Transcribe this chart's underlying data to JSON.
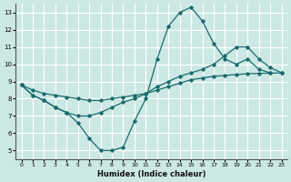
{
  "xlabel": "Humidex (Indice chaleur)",
  "bg_color": "#cce8e4",
  "grid_color": "#ffffff",
  "line_color": "#1a6b6b",
  "xlim": [
    -0.5,
    23.5
  ],
  "ylim": [
    4.5,
    13.5
  ],
  "xticks": [
    0,
    1,
    2,
    3,
    4,
    5,
    6,
    7,
    8,
    9,
    10,
    11,
    12,
    13,
    14,
    15,
    16,
    17,
    18,
    19,
    20,
    21,
    22,
    23
  ],
  "yticks": [
    5,
    6,
    7,
    8,
    9,
    10,
    11,
    12,
    13
  ],
  "line1_x": [
    0,
    1,
    2,
    3,
    4,
    5,
    6,
    7,
    8,
    9,
    10,
    11,
    12,
    13,
    14,
    15,
    16,
    17,
    18,
    19,
    20,
    21,
    22
  ],
  "line1_y": [
    8.8,
    8.2,
    7.9,
    7.5,
    7.2,
    6.6,
    5.7,
    5.0,
    5.0,
    5.2,
    6.7,
    8.0,
    10.3,
    12.2,
    13.0,
    13.3,
    12.5,
    11.2,
    10.3,
    10.0,
    10.3,
    9.7,
    9.5
  ],
  "line2_x": [
    0,
    1,
    2,
    3,
    4,
    5,
    6,
    7,
    8,
    9,
    10,
    11,
    12,
    13,
    14,
    15,
    16,
    17,
    18,
    19,
    20,
    21,
    22,
    23
  ],
  "line2_y": [
    8.8,
    8.5,
    8.3,
    8.2,
    8.1,
    8.0,
    7.9,
    7.9,
    8.0,
    8.1,
    8.2,
    8.3,
    8.5,
    8.7,
    8.9,
    9.1,
    9.2,
    9.3,
    9.35,
    9.4,
    9.45,
    9.47,
    9.48,
    9.5
  ],
  "line3_x": [
    0,
    1,
    2,
    3,
    4,
    5,
    6,
    7,
    8,
    9,
    10,
    11,
    12,
    13,
    14,
    15,
    16,
    17,
    18,
    19,
    20,
    21,
    22,
    23
  ],
  "line3_y": [
    8.8,
    8.2,
    7.9,
    7.5,
    7.2,
    7.0,
    7.0,
    7.2,
    7.5,
    7.8,
    8.0,
    8.3,
    8.7,
    9.0,
    9.3,
    9.5,
    9.7,
    10.0,
    10.5,
    11.0,
    11.0,
    10.3,
    9.8,
    9.5
  ]
}
